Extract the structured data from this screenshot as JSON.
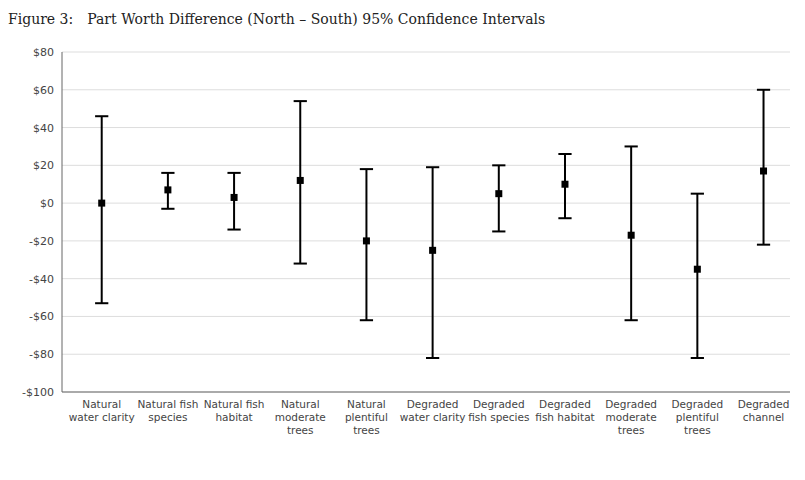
{
  "chart_data": {
    "type": "errorbar",
    "title": "Part Worth Difference (North – South) 95% Confidence Intervals",
    "annotations": [
      {
        "text": "Figure 3:"
      }
    ],
    "categories": [
      "Natural\nwater clarity",
      "Natural fish\nspecies",
      "Natural fish\nhabitat",
      "Natural\nmoderate\ntrees",
      "Natural\nplentiful\ntrees",
      "Degraded\nwater clarity",
      "Degraded\nfish species",
      "Degraded\nfish habitat",
      "Degraded\nmoderate\ntrees",
      "Degraded\nplentiful\ntrees",
      "Degraded\nchannel"
    ],
    "values": [
      0,
      7,
      3,
      12,
      -20,
      -25,
      5,
      10,
      -17,
      -35,
      17
    ],
    "ci_lower": [
      -53,
      -3,
      -14,
      -32,
      -62,
      -82,
      -15,
      -8,
      -62,
      -82,
      -22
    ],
    "ci_upper": [
      46,
      16,
      16,
      54,
      18,
      19,
      20,
      26,
      30,
      5,
      60
    ],
    "color": "#000000",
    "marker": "square",
    "ylim": [
      -100,
      80
    ],
    "yticks": [
      {
        "value": -100,
        "label": "-$100"
      },
      {
        "value": -80,
        "label": "-$80"
      },
      {
        "value": -60,
        "label": "-$60"
      },
      {
        "value": -40,
        "label": "-$40"
      },
      {
        "value": -20,
        "label": "-$20"
      },
      {
        "value": 0,
        "label": "$0"
      },
      {
        "value": 20,
        "label": "$20"
      },
      {
        "value": 40,
        "label": "$40"
      },
      {
        "value": 60,
        "label": "$60"
      },
      {
        "value": 80,
        "label": "$80"
      }
    ],
    "grid": true
  }
}
